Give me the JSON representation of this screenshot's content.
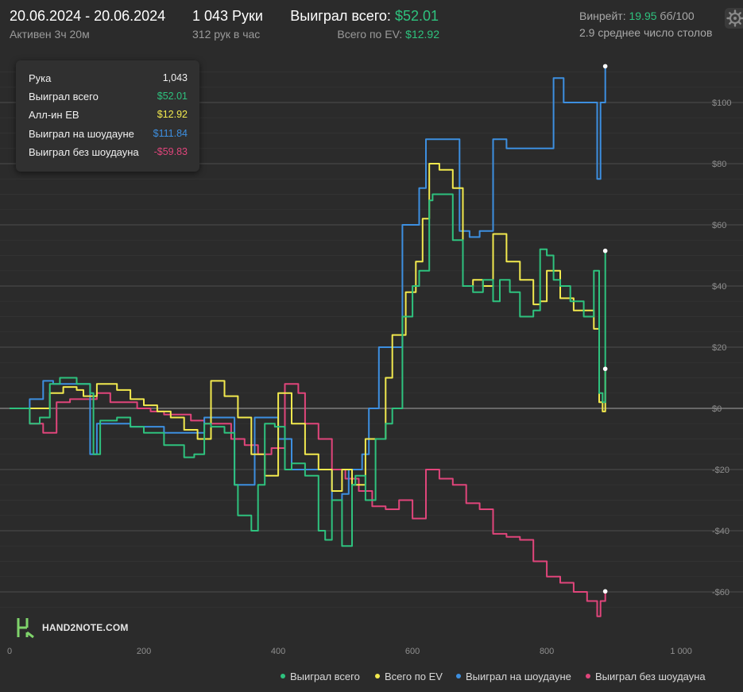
{
  "header": {
    "date_range": "20.06.2024 - 20.06.2024",
    "active_time": "Активен 3ч 20м",
    "hands": "1 043 Руки",
    "hands_per_hour": "312 рук в час",
    "won_total_label": "Выиграл всего:",
    "won_total_value": "$52.01",
    "ev_label": "Всего по EV:",
    "ev_value": "$12.92",
    "winrate_label": "Винрейт:",
    "winrate_value": "19.95",
    "winrate_unit": "бб/100",
    "tables_avg": "2.9 среднее число столов"
  },
  "tooltip": {
    "rows": [
      {
        "label": "Рука",
        "value": "1,043",
        "color": "#f0f0f0"
      },
      {
        "label": "Выиграл всего",
        "value": "$52.01",
        "color": "#2ec27e"
      },
      {
        "label": "Алл-ин EВ",
        "value": "$12.92",
        "color": "#f2e94e"
      },
      {
        "label": "Выиграл на шоудауне",
        "value": "$111.84",
        "color": "#3d8fe0"
      },
      {
        "label": "Выиграл без шоудауна",
        "value": "-$59.83",
        "color": "#e0457b"
      }
    ]
  },
  "logo": {
    "text": "HAND2NOTE.COM",
    "icon": "hand2note-logo-icon"
  },
  "icons": {
    "settings": "gear-icon"
  },
  "chart_data": {
    "type": "line",
    "xlim": [
      0,
      1043
    ],
    "ylim": [
      -70,
      112
    ],
    "x_ticks": [
      {
        "v": 0,
        "label": "0"
      },
      {
        "v": 200,
        "label": "200"
      },
      {
        "v": 400,
        "label": "400"
      },
      {
        "v": 600,
        "label": "600"
      },
      {
        "v": 800,
        "label": "800"
      },
      {
        "v": 1000,
        "label": "1 000"
      }
    ],
    "y_ticks": [
      {
        "v": 100,
        "label": "$100"
      },
      {
        "v": 80,
        "label": "$80"
      },
      {
        "v": 60,
        "label": "$60"
      },
      {
        "v": 40,
        "label": "$40"
      },
      {
        "v": 20,
        "label": "$20"
      },
      {
        "v": 0,
        "label": "$0"
      },
      {
        "v": -20,
        "label": "-$20"
      },
      {
        "v": -40,
        "label": "-$40"
      },
      {
        "v": -60,
        "label": "-$60"
      }
    ],
    "grid": true,
    "legend_position": "bottom-right",
    "series": [
      {
        "name": "Выиграл всего",
        "color": "#2ec27e",
        "x": [
          0,
          30,
          45,
          60,
          75,
          85,
          100,
          120,
          125,
          135,
          160,
          180,
          200,
          230,
          260,
          275,
          290,
          300,
          320,
          335,
          340,
          360,
          370,
          380,
          395,
          410,
          420,
          440,
          460,
          470,
          480,
          495,
          510,
          515,
          530,
          545,
          560,
          570,
          585,
          600,
          610,
          625,
          630,
          660,
          675,
          690,
          705,
          720,
          730,
          745,
          760,
          780,
          790,
          800,
          810,
          820,
          835,
          855,
          870,
          878,
          883,
          887
        ],
        "y": [
          0,
          -5,
          -3,
          8,
          10,
          10,
          8,
          5,
          -15,
          -4,
          -3,
          -6,
          -8,
          -12,
          -16,
          -15,
          -5,
          -6,
          -8,
          -25,
          -35,
          -40,
          -25,
          -5,
          -6,
          -20,
          -18,
          -22,
          -40,
          -43,
          -30,
          -45,
          -25,
          -22,
          -30,
          -10,
          -5,
          0,
          30,
          40,
          45,
          68,
          70,
          55,
          40,
          38,
          42,
          35,
          42,
          38,
          30,
          32,
          52,
          50,
          42,
          40,
          35,
          30,
          45,
          5,
          2,
          51.5
        ]
      },
      {
        "name": "Всего по EV",
        "color": "#f2e94e",
        "x": [
          0,
          40,
          60,
          80,
          100,
          110,
          130,
          160,
          180,
          200,
          220,
          240,
          260,
          280,
          300,
          320,
          340,
          360,
          380,
          400,
          420,
          440,
          460,
          480,
          495,
          510,
          530,
          540,
          560,
          570,
          590,
          605,
          615,
          625,
          640,
          660,
          675,
          690,
          705,
          720,
          740,
          760,
          780,
          790,
          800,
          820,
          840,
          860,
          870,
          878,
          883,
          887
        ],
        "y": [
          0,
          0,
          5,
          7,
          6,
          4,
          8,
          6,
          3,
          1,
          -1,
          -3,
          -7,
          -10,
          9,
          4,
          -3,
          -15,
          -22,
          5,
          -5,
          -15,
          -20,
          -27,
          -20,
          -25,
          -10,
          -10,
          10,
          24,
          38,
          48,
          62,
          80,
          78,
          72,
          40,
          42,
          40,
          57,
          48,
          42,
          34,
          35,
          45,
          36,
          32,
          32,
          26,
          2,
          -1,
          12.92
        ]
      },
      {
        "name": "Выиграл на шоудауне",
        "color": "#3d8fe0",
        "x": [
          0,
          30,
          50,
          65,
          80,
          100,
          120,
          130,
          150,
          180,
          200,
          230,
          270,
          290,
          300,
          320,
          335,
          345,
          365,
          375,
          385,
          400,
          420,
          440,
          460,
          480,
          495,
          505,
          525,
          535,
          550,
          565,
          575,
          585,
          600,
          610,
          620,
          635,
          650,
          670,
          685,
          700,
          720,
          740,
          760,
          790,
          810,
          825,
          840,
          860,
          875,
          880,
          887
        ],
        "y": [
          0,
          3,
          9,
          8,
          8,
          8,
          -15,
          -5,
          -5,
          -6,
          -6,
          -8,
          -8,
          -3,
          -3,
          -3,
          -25,
          -25,
          -3,
          -3,
          -3,
          -10,
          -20,
          -20,
          -20,
          -30,
          -28,
          -20,
          -15,
          0,
          20,
          20,
          20,
          60,
          60,
          72,
          88,
          88,
          88,
          58,
          56,
          58,
          88,
          85,
          85,
          85,
          108,
          100,
          100,
          100,
          75,
          100,
          111.84
        ]
      },
      {
        "name": "Выиграл без шоудауна",
        "color": "#e0457b",
        "x": [
          0,
          30,
          50,
          70,
          90,
          110,
          130,
          150,
          170,
          190,
          210,
          230,
          250,
          270,
          290,
          310,
          330,
          350,
          370,
          390,
          410,
          420,
          430,
          440,
          460,
          480,
          500,
          520,
          540,
          560,
          580,
          600,
          620,
          640,
          660,
          680,
          700,
          720,
          740,
          760,
          780,
          800,
          820,
          840,
          860,
          875,
          880,
          887
        ],
        "y": [
          0,
          -5,
          -8,
          2,
          3,
          3,
          5,
          2,
          2,
          0,
          -1,
          -2,
          -2,
          -4,
          -5,
          -5,
          -10,
          -12,
          -15,
          -13,
          8,
          8,
          5,
          -5,
          -10,
          -20,
          -23,
          -27,
          -32,
          -33,
          -30,
          -36,
          -20,
          -23,
          -25,
          -31,
          -33,
          -41,
          -42,
          -43,
          -50,
          -55,
          -57,
          -60,
          -63,
          -68,
          -63,
          -59.83
        ]
      }
    ]
  }
}
